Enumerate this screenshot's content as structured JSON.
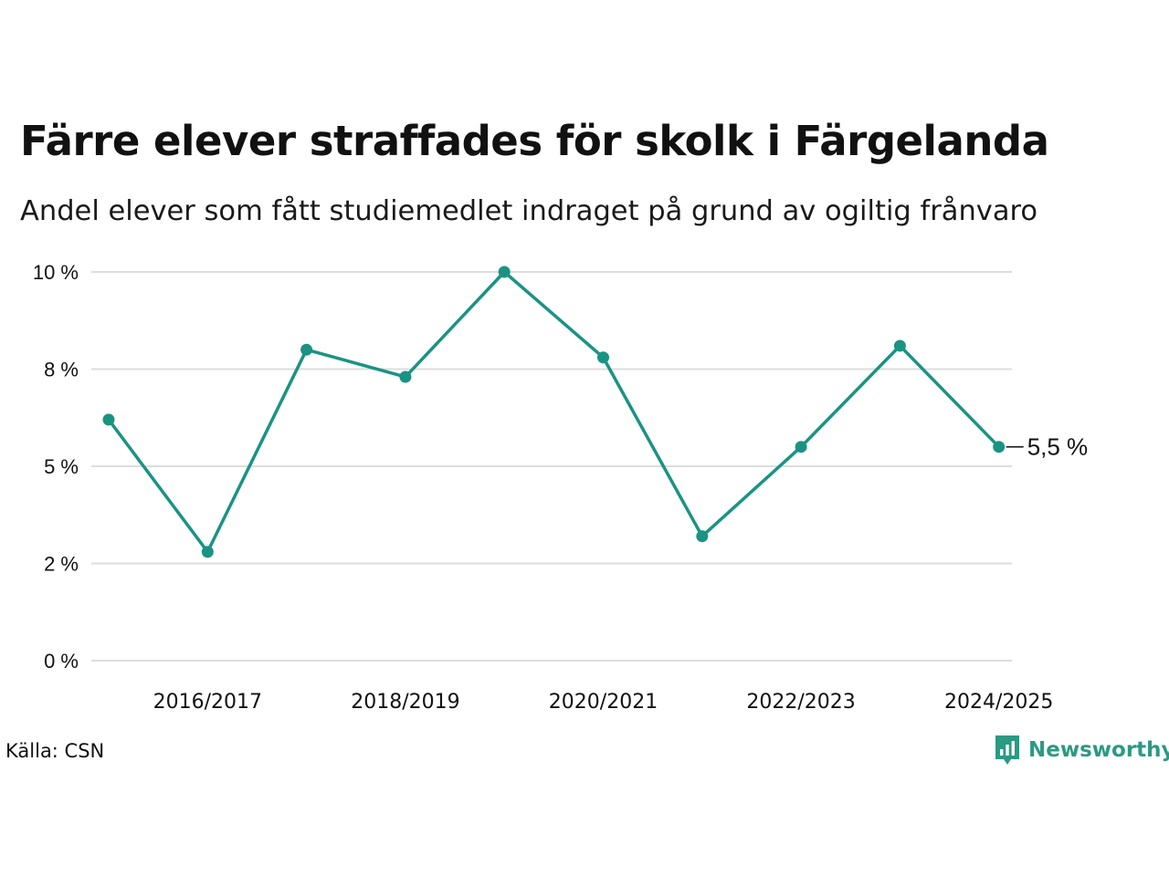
{
  "header": {
    "title": "Färre elever straffades för skolk i Färgelanda",
    "subtitle": "Andel elever som fått studiemedlet indraget på grund av ogiltig frånvaro"
  },
  "footer": {
    "source": "Källa: CSN",
    "brand": "Newsworthy"
  },
  "colors": {
    "line": "#1a9383",
    "grid": "#dddddd",
    "text": "#111111",
    "brand": "#2b9a83"
  },
  "chart_data": {
    "type": "line",
    "title": "Färre elever straffades för skolk i Färgelanda",
    "subtitle": "Andel elever som fått studiemedlet indraget på grund av ogiltig frånvaro",
    "xlabel": "",
    "ylabel": "",
    "x": [
      "2015/2016",
      "2016/2017",
      "2017/2018",
      "2018/2019",
      "2019/2020",
      "2020/2021",
      "2021/2022",
      "2022/2023",
      "2023/2024",
      "2024/2025"
    ],
    "x_tick_labels": [
      "2016/2017",
      "2018/2019",
      "2020/2021",
      "2022/2023",
      "2024/2025"
    ],
    "values": [
      6.2,
      2.8,
      8.0,
      7.3,
      10.0,
      7.8,
      3.2,
      5.5,
      8.1,
      5.5
    ],
    "ylim": [
      0,
      10
    ],
    "y_ticks": [
      0,
      2.5,
      5,
      7.5,
      10
    ],
    "y_tick_labels": [
      "0 %",
      "2 %",
      "5 %",
      "8 %",
      "10 %"
    ],
    "end_label": "5,5 %",
    "grid": true,
    "legend": "none"
  }
}
